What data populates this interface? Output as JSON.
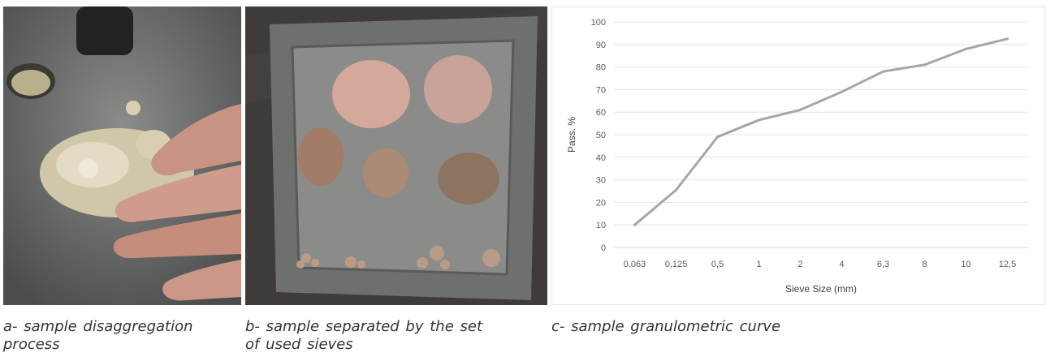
{
  "captions": {
    "a": "a- sample disaggregation process",
    "b": "b- sample separated by the set of used sieves",
    "c": "c- sample granulometric curve"
  },
  "chart_data": {
    "type": "line",
    "title": "",
    "xlabel": "Sieve Size (mm)",
    "ylabel": "Pass. %",
    "categories": [
      "0,063",
      "0,125",
      "0,5",
      "1",
      "2",
      "4",
      "6,3",
      "8",
      "10",
      "12,5"
    ],
    "values": [
      10,
      25.5,
      49,
      56.5,
      61,
      69,
      78,
      81,
      88,
      92.5
    ],
    "ylim": [
      0,
      100
    ],
    "yticks": [
      0,
      10,
      20,
      30,
      40,
      50,
      60,
      70,
      80,
      90,
      100
    ],
    "grid": true,
    "line_color": "#a6a6a6"
  }
}
